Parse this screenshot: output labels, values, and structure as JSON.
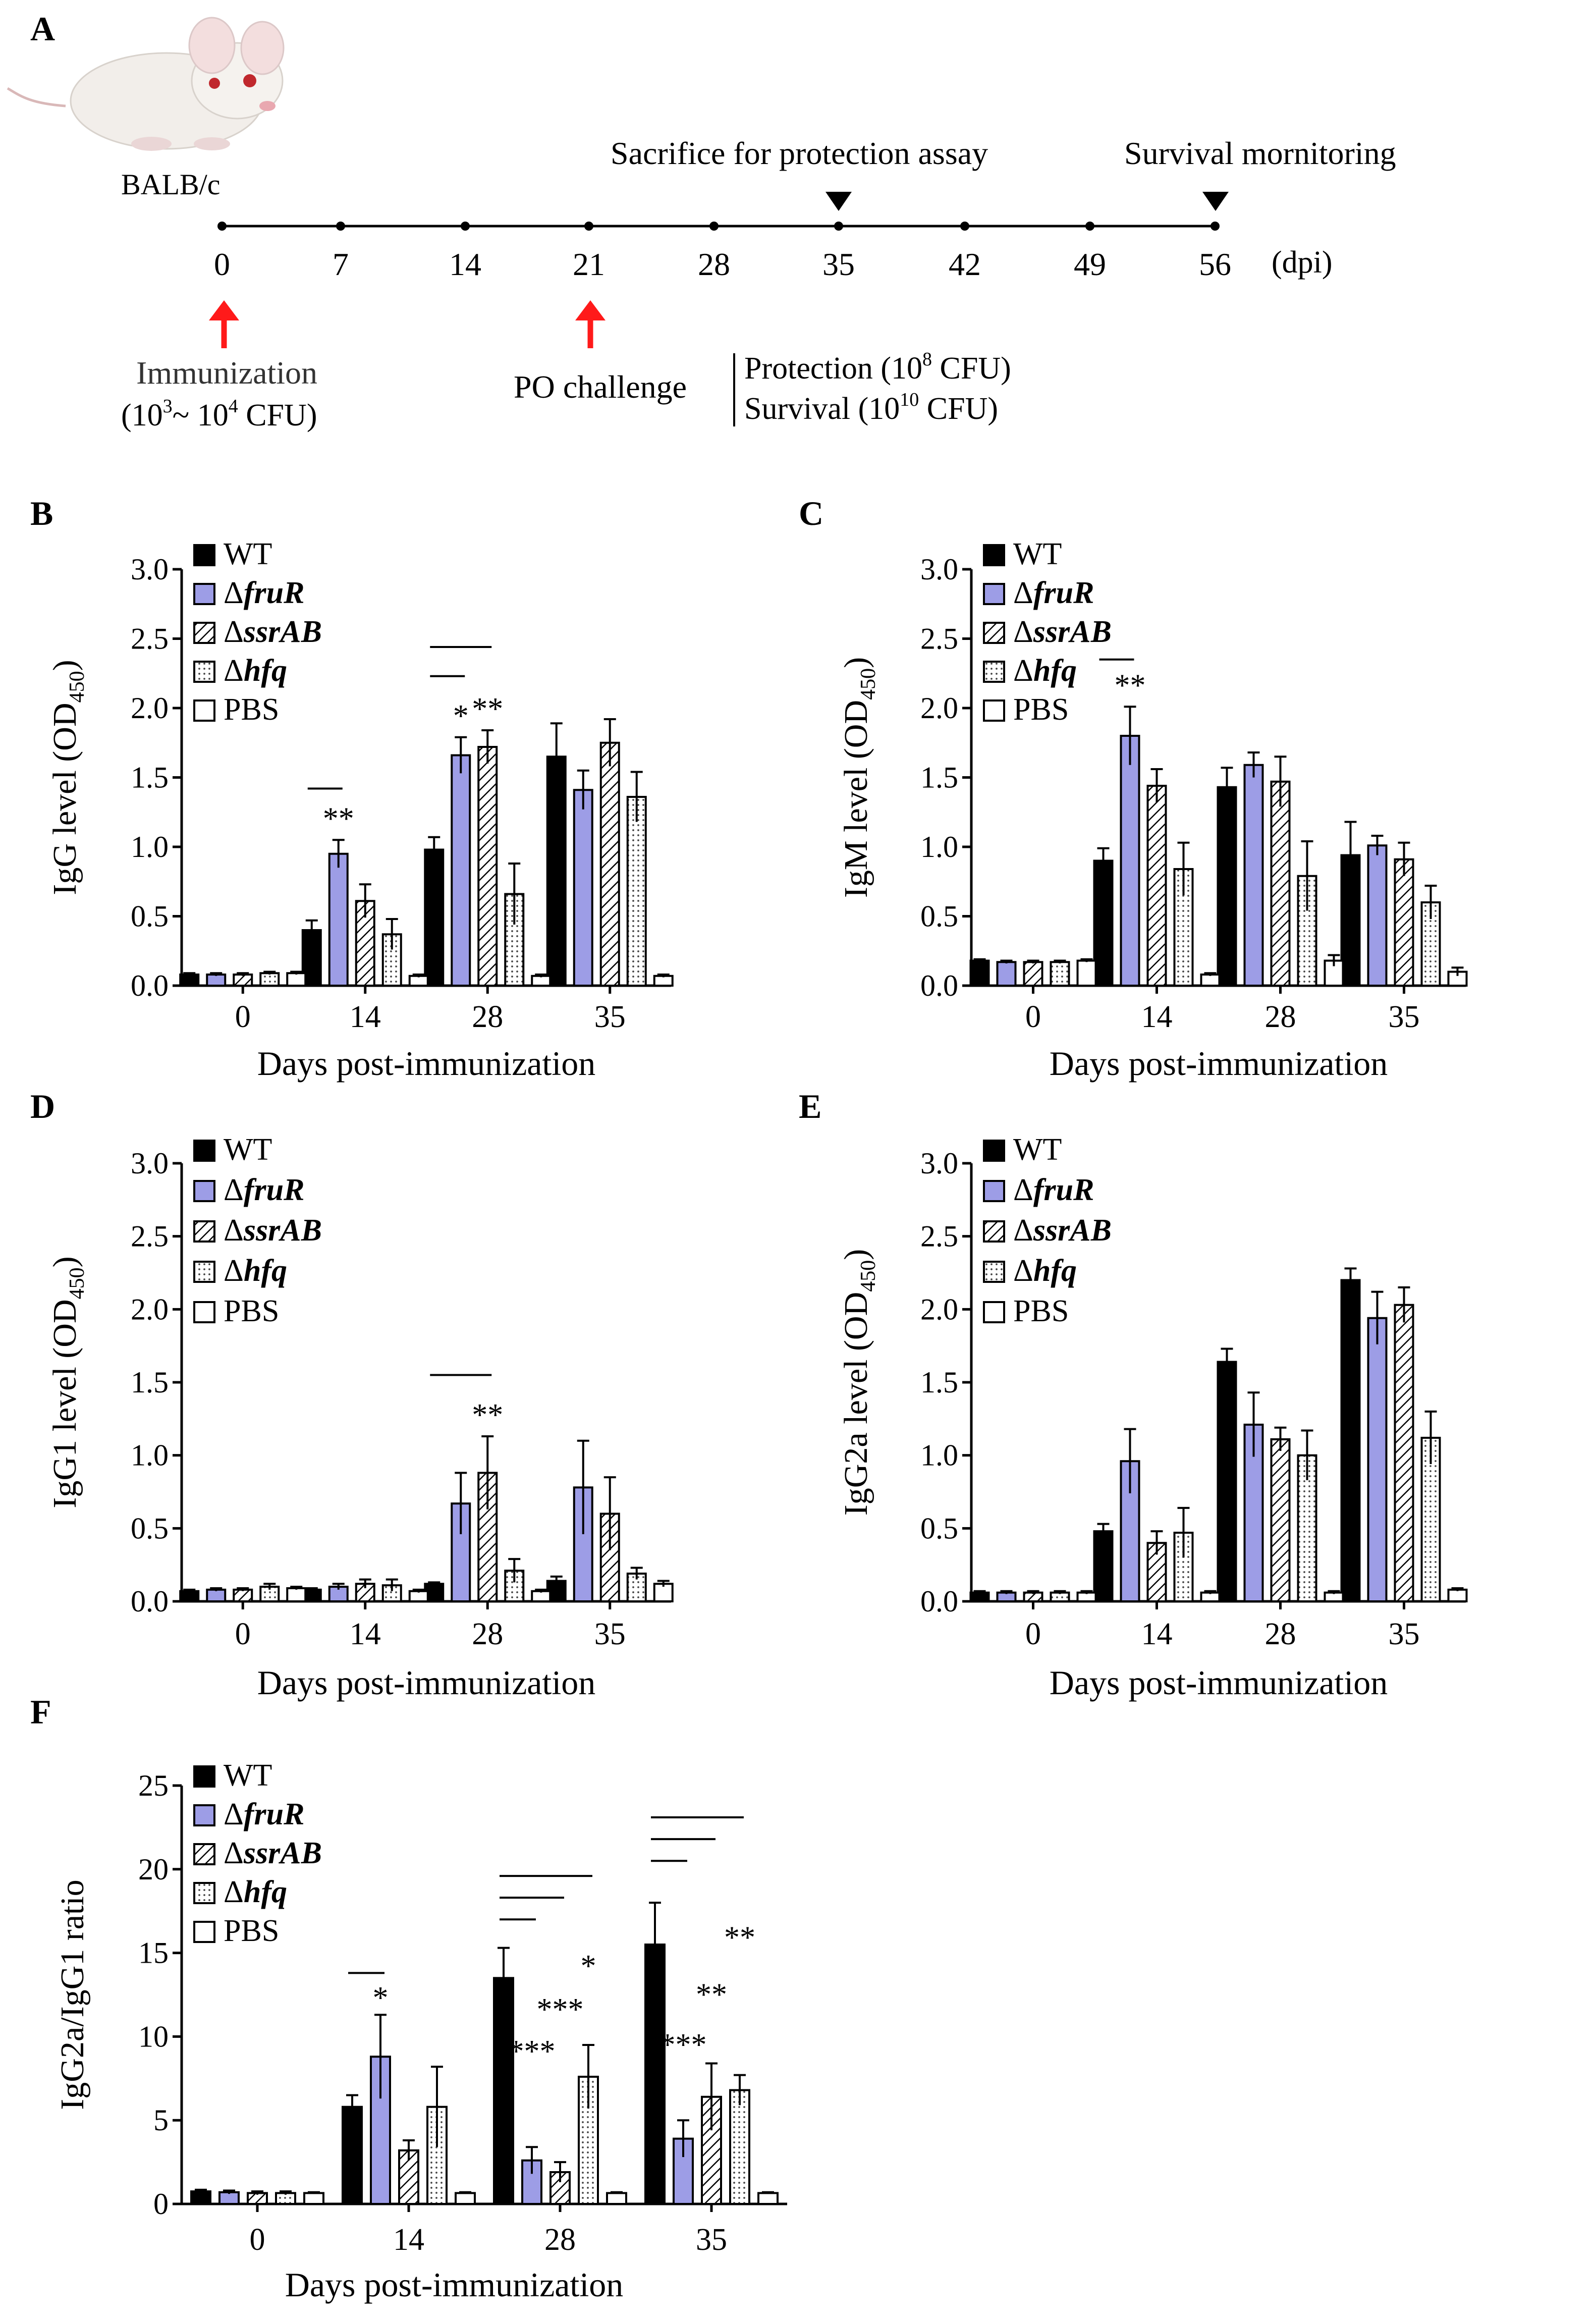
{
  "colors": {
    "wt": "#000000",
    "fruR": "#9d9de6",
    "outline": "#000000",
    "arrow": "#ff1a1a",
    "mouse_body": "#f0ece8"
  },
  "icons": {
    "mouse": "mouse-illustration",
    "marker": "down-triangle-icon",
    "arrow": "up-arrow-icon"
  },
  "panel_a": {
    "letter": "A",
    "strain": "BALB/c",
    "days": [
      "0",
      "7",
      "14",
      "21",
      "28",
      "35",
      "42",
      "49",
      "56"
    ],
    "unit": "(dpi)",
    "sacrifice_label": "Sacrifice for protection assay",
    "survival_label": "Survival mornitoring",
    "immunization_title": "Immunization",
    "immunization_dose": {
      "open": "(10",
      "sup1": "3",
      "mid": "~ 10",
      "sup2": "4",
      "close": " CFU)"
    },
    "challenge_label": "PO challenge",
    "protection": {
      "text": "Protection (10",
      "sup": "8",
      "close": " CFU)"
    },
    "survival": {
      "text": "Survival (10",
      "sup": "10",
      "close": " CFU)"
    }
  },
  "chart_data": [
    {
      "panel": "B",
      "type": "bar",
      "ylabel": "IgG level (OD",
      "ylabel_sub": "450",
      "ylabel_close": ")",
      "xlabel": "Days post-immunization",
      "categories": [
        "0",
        "14",
        "28",
        "35"
      ],
      "ylim": [
        0,
        3.0
      ],
      "yticks": [
        "0.0",
        "0.5",
        "1.0",
        "1.5",
        "2.0",
        "2.5",
        "3.0"
      ],
      "ystep": 0.5,
      "series": [
        {
          "name": "WT",
          "pattern": "solid",
          "values": [
            0.08,
            0.4,
            0.98,
            1.65
          ],
          "errors": [
            0.01,
            0.07,
            0.09,
            0.24
          ]
        },
        {
          "name": "fruR",
          "pattern": "blue",
          "values": [
            0.08,
            0.95,
            1.66,
            1.41
          ],
          "errors": [
            0.01,
            0.1,
            0.13,
            0.14
          ]
        },
        {
          "name": "ssrAB",
          "pattern": "hatch",
          "values": [
            0.08,
            0.61,
            1.72,
            1.75
          ],
          "errors": [
            0.01,
            0.12,
            0.12,
            0.17
          ]
        },
        {
          "name": "hfq",
          "pattern": "dots",
          "values": [
            0.09,
            0.37,
            0.66,
            1.36
          ],
          "errors": [
            0.01,
            0.11,
            0.22,
            0.18
          ]
        },
        {
          "name": "PBS",
          "pattern": "empty",
          "values": [
            0.09,
            0.07,
            0.07,
            0.07
          ],
          "errors": [
            0.01,
            0.01,
            0.01,
            0.01
          ]
        }
      ],
      "significance": [
        {
          "category": 1,
          "series": 1,
          "label": "**"
        },
        {
          "category": 2,
          "series": 1,
          "label": "*"
        },
        {
          "category": 2,
          "series": 2,
          "label": "**"
        }
      ],
      "brackets": [
        {
          "category": 1,
          "to": 1,
          "y": 1.42
        },
        {
          "category": 2,
          "to": 1,
          "y": 2.23
        },
        {
          "category": 2,
          "to": 2,
          "y": 2.44
        }
      ]
    },
    {
      "panel": "C",
      "type": "bar",
      "ylabel": "IgM level (OD",
      "ylabel_sub": "450",
      "ylabel_close": ")",
      "xlabel": "Days post-immunization",
      "categories": [
        "0",
        "14",
        "28",
        "35"
      ],
      "ylim": [
        0,
        3.0
      ],
      "yticks": [
        "0.0",
        "0.5",
        "1.0",
        "1.5",
        "2.0",
        "2.5",
        "3.0"
      ],
      "ystep": 0.5,
      "series": [
        {
          "name": "WT",
          "pattern": "solid",
          "values": [
            0.18,
            0.9,
            1.43,
            0.94
          ],
          "errors": [
            0.01,
            0.09,
            0.14,
            0.24
          ]
        },
        {
          "name": "fruR",
          "pattern": "blue",
          "values": [
            0.17,
            1.8,
            1.59,
            1.01
          ],
          "errors": [
            0.01,
            0.21,
            0.09,
            0.07
          ]
        },
        {
          "name": "ssrAB",
          "pattern": "hatch",
          "values": [
            0.17,
            1.44,
            1.47,
            0.91
          ],
          "errors": [
            0.01,
            0.12,
            0.18,
            0.12
          ]
        },
        {
          "name": "hfq",
          "pattern": "dots",
          "values": [
            0.17,
            0.84,
            0.79,
            0.6
          ],
          "errors": [
            0.01,
            0.19,
            0.25,
            0.12
          ]
        },
        {
          "name": "PBS",
          "pattern": "empty",
          "values": [
            0.18,
            0.08,
            0.18,
            0.1
          ],
          "errors": [
            0.01,
            0.01,
            0.04,
            0.03
          ]
        }
      ],
      "significance": [
        {
          "category": 1,
          "series": 1,
          "label": "**"
        }
      ],
      "brackets": [
        {
          "category": 1,
          "to": 1,
          "y": 2.35
        }
      ]
    },
    {
      "panel": "D",
      "type": "bar",
      "ylabel": "IgG1 level (OD",
      "ylabel_sub": "450",
      "ylabel_close": ")",
      "xlabel": "Days post-immunization",
      "categories": [
        "0",
        "14",
        "28",
        "35"
      ],
      "ylim": [
        0,
        3.0
      ],
      "yticks": [
        "0.0",
        "0.5",
        "1.0",
        "1.5",
        "2.0",
        "2.5",
        "3.0"
      ],
      "ystep": 0.5,
      "series": [
        {
          "name": "WT",
          "pattern": "solid",
          "values": [
            0.07,
            0.08,
            0.12,
            0.14
          ],
          "errors": [
            0.01,
            0.01,
            0.01,
            0.03
          ]
        },
        {
          "name": "fruR",
          "pattern": "blue",
          "values": [
            0.08,
            0.1,
            0.67,
            0.78
          ],
          "errors": [
            0.01,
            0.02,
            0.21,
            0.32
          ]
        },
        {
          "name": "ssrAB",
          "pattern": "hatch",
          "values": [
            0.08,
            0.12,
            0.88,
            0.6
          ],
          "errors": [
            0.01,
            0.03,
            0.25,
            0.25
          ]
        },
        {
          "name": "hfq",
          "pattern": "dots",
          "values": [
            0.1,
            0.11,
            0.21,
            0.19
          ],
          "errors": [
            0.02,
            0.04,
            0.08,
            0.04
          ]
        },
        {
          "name": "PBS",
          "pattern": "empty",
          "values": [
            0.09,
            0.07,
            0.07,
            0.12
          ],
          "errors": [
            0.01,
            0.01,
            0.01,
            0.02
          ]
        }
      ],
      "significance": [
        {
          "category": 2,
          "series": 2,
          "label": "**"
        }
      ],
      "brackets": [
        {
          "category": 2,
          "to": 2,
          "y": 1.55
        }
      ]
    },
    {
      "panel": "E",
      "type": "bar",
      "ylabel": "IgG2a  level (OD",
      "ylabel_sub": "450",
      "ylabel_close": ")",
      "xlabel": "Days post-immunization",
      "categories": [
        "0",
        "14",
        "28",
        "35"
      ],
      "ylim": [
        0,
        3.0
      ],
      "yticks": [
        "0.0",
        "0.5",
        "1.0",
        "1.5",
        "2.0",
        "2.5",
        "3.0"
      ],
      "ystep": 0.5,
      "series": [
        {
          "name": "WT",
          "pattern": "solid",
          "values": [
            0.06,
            0.48,
            1.64,
            2.2
          ],
          "errors": [
            0.01,
            0.05,
            0.09,
            0.08
          ]
        },
        {
          "name": "fruR",
          "pattern": "blue",
          "values": [
            0.06,
            0.96,
            1.21,
            1.94
          ],
          "errors": [
            0.01,
            0.22,
            0.22,
            0.18
          ]
        },
        {
          "name": "ssrAB",
          "pattern": "hatch",
          "values": [
            0.06,
            0.4,
            1.11,
            2.03
          ],
          "errors": [
            0.01,
            0.08,
            0.08,
            0.12
          ]
        },
        {
          "name": "hfq",
          "pattern": "dots",
          "values": [
            0.06,
            0.47,
            1.0,
            1.12
          ],
          "errors": [
            0.01,
            0.17,
            0.17,
            0.18
          ]
        },
        {
          "name": "PBS",
          "pattern": "empty",
          "values": [
            0.06,
            0.06,
            0.06,
            0.08
          ],
          "errors": [
            0.01,
            0.01,
            0.01,
            0.01
          ]
        }
      ],
      "significance": [],
      "brackets": []
    },
    {
      "panel": "F",
      "type": "bar",
      "ylabel": "IgG2a/IgG1 ratio",
      "ylabel_sub": "",
      "ylabel_close": "",
      "xlabel": "Days post-immunization",
      "categories": [
        "0",
        "14",
        "28",
        "35"
      ],
      "ylim": [
        0,
        25
      ],
      "yticks": [
        "0",
        "5",
        "10",
        "15",
        "20",
        "25"
      ],
      "ystep": 5,
      "series": [
        {
          "name": "WT",
          "pattern": "solid",
          "values": [
            0.75,
            5.8,
            13.5,
            15.5
          ],
          "errors": [
            0.1,
            0.7,
            1.8,
            2.5
          ]
        },
        {
          "name": "fruR",
          "pattern": "blue",
          "values": [
            0.7,
            8.8,
            2.6,
            3.9
          ],
          "errors": [
            0.1,
            2.5,
            0.8,
            1.1
          ]
        },
        {
          "name": "ssrAB",
          "pattern": "hatch",
          "values": [
            0.65,
            3.2,
            1.9,
            6.4
          ],
          "errors": [
            0.1,
            0.6,
            0.6,
            2.0
          ]
        },
        {
          "name": "hfq",
          "pattern": "dots",
          "values": [
            0.65,
            5.8,
            7.6,
            6.8
          ],
          "errors": [
            0.1,
            2.4,
            1.9,
            0.9
          ]
        },
        {
          "name": "PBS",
          "pattern": "empty",
          "values": [
            0.65,
            0.65,
            0.65,
            0.65
          ],
          "errors": [
            0.05,
            0.05,
            0.05,
            0.05
          ]
        }
      ],
      "significance": [
        {
          "category": 1,
          "series": 1,
          "label": "*",
          "y": 11.7
        },
        {
          "category": 2,
          "series": 1,
          "label": "***",
          "y": 8.5
        },
        {
          "category": 2,
          "series": 2,
          "label": "***",
          "y": 11.0
        },
        {
          "category": 2,
          "series": 3,
          "label": "*",
          "y": 13.6
        },
        {
          "category": 3,
          "series": 1,
          "label": "***",
          "y": 8.9
        },
        {
          "category": 3,
          "series": 2,
          "label": "**",
          "y": 11.9
        },
        {
          "category": 3,
          "series": 3,
          "label": "**",
          "y": 15.3
        }
      ],
      "brackets": [
        {
          "category": 1,
          "to": 1,
          "y": 13.8
        },
        {
          "category": 2,
          "to": 1,
          "y": 17.0
        },
        {
          "category": 2,
          "to": 2,
          "y": 18.3
        },
        {
          "category": 2,
          "to": 3,
          "y": 19.6
        },
        {
          "category": 3,
          "to": 1,
          "y": 20.5
        },
        {
          "category": 3,
          "to": 2,
          "y": 21.8
        },
        {
          "category": 3,
          "to": 3,
          "y": 23.1
        }
      ]
    }
  ]
}
